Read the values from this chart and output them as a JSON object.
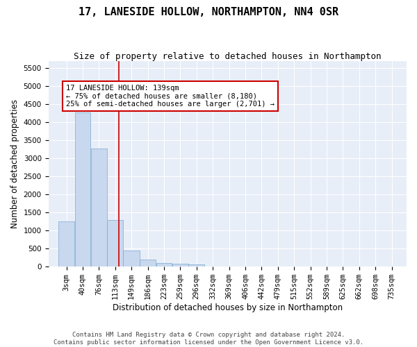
{
  "title": "17, LANESIDE HOLLOW, NORTHAMPTON, NN4 0SR",
  "subtitle": "Size of property relative to detached houses in Northampton",
  "xlabel": "Distribution of detached houses by size in Northampton",
  "ylabel": "Number of detached properties",
  "footer_line1": "Contains HM Land Registry data © Crown copyright and database right 2024.",
  "footer_line2": "Contains public sector information licensed under the Open Government Licence v3.0.",
  "annotation_title": "17 LANESIDE HOLLOW: 139sqm",
  "annotation_line1": "← 75% of detached houses are smaller (8,180)",
  "annotation_line2": "25% of semi-detached houses are larger (2,701) →",
  "bar_color": "#c8d8ee",
  "bar_edge_color": "#7aaacf",
  "vline_color": "#cc0000",
  "vline_x": 139,
  "categories": [
    "3sqm",
    "40sqm",
    "76sqm",
    "113sqm",
    "149sqm",
    "186sqm",
    "223sqm",
    "259sqm",
    "296sqm",
    "332sqm",
    "369sqm",
    "406sqm",
    "442sqm",
    "479sqm",
    "515sqm",
    "552sqm",
    "589sqm",
    "625sqm",
    "662sqm",
    "698sqm",
    "735sqm"
  ],
  "bin_edges": [
    3,
    40,
    76,
    113,
    149,
    186,
    223,
    259,
    296,
    332,
    369,
    406,
    442,
    479,
    515,
    552,
    589,
    625,
    662,
    698,
    735
  ],
  "values": [
    1250,
    4280,
    3270,
    1300,
    450,
    200,
    110,
    85,
    60,
    0,
    0,
    0,
    0,
    0,
    0,
    0,
    0,
    0,
    0,
    0
  ],
  "ylim": [
    0,
    5700
  ],
  "yticks": [
    0,
    500,
    1000,
    1500,
    2000,
    2500,
    3000,
    3500,
    4000,
    4500,
    5000,
    5500
  ],
  "background_color": "#e8eef8",
  "title_fontsize": 11,
  "subtitle_fontsize": 9,
  "axis_label_fontsize": 8.5,
  "tick_fontsize": 7.5,
  "annotation_fontsize": 7.5,
  "footer_fontsize": 6.5
}
